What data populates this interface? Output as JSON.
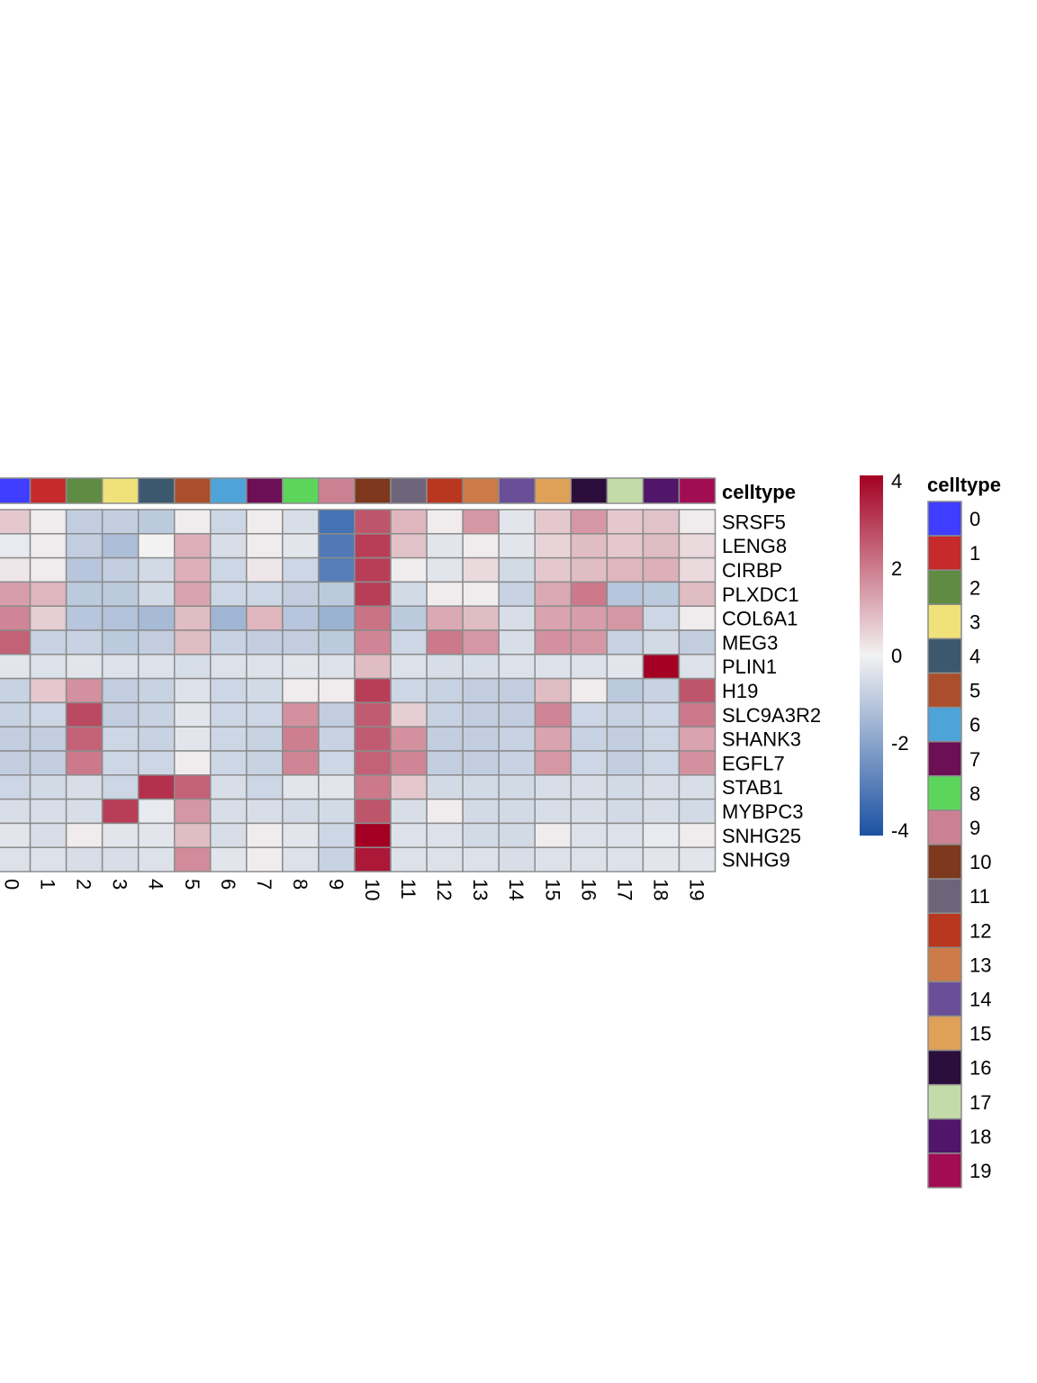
{
  "chart_data": {
    "type": "heatmap",
    "columns": [
      "0",
      "1",
      "2",
      "3",
      "4",
      "5",
      "6",
      "7",
      "8",
      "9",
      "10",
      "11",
      "12",
      "13",
      "14",
      "15",
      "16",
      "17",
      "18",
      "19"
    ],
    "rows": [
      "SRSF5",
      "LENG8",
      "CIRBP",
      "PLXDC1",
      "COL6A1",
      "MEG3",
      "PLIN1",
      "H19",
      "SLC9A3R2",
      "SHANK3",
      "EGFL7",
      "STAB1",
      "MYBPC3",
      "SNHG25",
      "SNHG9"
    ],
    "values": [
      [
        0.7,
        0.1,
        -0.9,
        -0.9,
        -1.0,
        0.1,
        -0.7,
        0.1,
        -0.5,
        -3.2,
        2.6,
        1.0,
        0.1,
        1.5,
        -0.3,
        0.7,
        1.5,
        0.7,
        0.8,
        0.1
      ],
      [
        -0.2,
        0.1,
        -0.9,
        -1.3,
        0.0,
        1.1,
        -0.5,
        0.1,
        -0.3,
        -3.0,
        3.0,
        0.8,
        -0.3,
        0.1,
        -0.3,
        0.5,
        0.9,
        0.7,
        0.9,
        0.4
      ],
      [
        0.2,
        0.1,
        -1.1,
        -0.9,
        -0.6,
        1.1,
        -0.7,
        0.2,
        -0.7,
        -2.9,
        3.0,
        0.1,
        -0.3,
        0.4,
        -0.6,
        0.7,
        0.9,
        1.0,
        1.1,
        0.4
      ],
      [
        1.4,
        1.0,
        -1.0,
        -1.0,
        -0.6,
        1.3,
        -0.7,
        -0.7,
        -0.9,
        -1.0,
        3.0,
        -0.6,
        0.1,
        0.1,
        -0.8,
        1.2,
        2.0,
        -1.1,
        -1.0,
        0.9
      ],
      [
        1.8,
        0.6,
        -1.1,
        -1.2,
        -1.4,
        0.9,
        -1.5,
        1.0,
        -1.1,
        -1.6,
        2.1,
        -1.0,
        1.2,
        0.9,
        -0.5,
        1.3,
        1.4,
        1.5,
        -0.7,
        0.1
      ],
      [
        2.4,
        -0.8,
        -0.8,
        -1.0,
        -0.9,
        0.9,
        -0.8,
        -0.9,
        -0.9,
        -1.0,
        1.8,
        -0.7,
        2.0,
        1.5,
        -0.5,
        1.6,
        1.5,
        -0.8,
        -0.6,
        -0.9
      ],
      [
        -0.3,
        -0.4,
        -0.3,
        -0.4,
        -0.4,
        -0.5,
        -0.4,
        -0.4,
        -0.3,
        -0.4,
        0.9,
        -0.4,
        -0.5,
        -0.5,
        -0.4,
        -0.4,
        -0.4,
        -0.3,
        4.0,
        -0.4
      ],
      [
        -0.8,
        0.7,
        1.6,
        -0.9,
        -0.8,
        -0.4,
        -0.7,
        -0.6,
        0.1,
        0.1,
        3.0,
        -0.7,
        -0.8,
        -0.9,
        -0.9,
        0.9,
        0.1,
        -1.0,
        -0.8,
        2.6
      ],
      [
        -0.8,
        -0.7,
        2.8,
        -0.9,
        -0.8,
        -0.3,
        -0.7,
        -0.7,
        1.6,
        -0.9,
        2.5,
        0.6,
        -0.8,
        -0.9,
        -0.9,
        1.8,
        -0.7,
        -0.8,
        -0.7,
        2.0
      ],
      [
        -0.9,
        -0.9,
        2.4,
        -0.7,
        -0.8,
        -0.3,
        -0.7,
        -0.8,
        1.9,
        -0.8,
        2.5,
        1.6,
        -0.9,
        -0.9,
        -0.8,
        1.3,
        -0.8,
        -0.9,
        -0.7,
        1.3
      ],
      [
        -0.9,
        -0.9,
        2.0,
        -0.7,
        -0.7,
        0.1,
        -0.7,
        -0.8,
        1.8,
        -0.7,
        2.4,
        1.8,
        -0.9,
        -0.9,
        -0.8,
        1.5,
        -0.7,
        -0.9,
        -0.7,
        1.6
      ],
      [
        -0.7,
        -0.6,
        -0.5,
        -0.7,
        3.2,
        2.4,
        -0.5,
        -0.7,
        -0.3,
        -0.3,
        2.0,
        0.7,
        -0.6,
        -0.6,
        -0.6,
        -0.5,
        -0.5,
        -0.6,
        -0.5,
        -0.5
      ],
      [
        -0.5,
        -0.5,
        -0.5,
        3.0,
        -0.2,
        1.5,
        -0.5,
        -0.5,
        -0.6,
        -0.6,
        2.6,
        -0.5,
        0.1,
        -0.6,
        -0.6,
        -0.5,
        -0.5,
        -0.6,
        -0.5,
        -0.6
      ],
      [
        -0.3,
        -0.5,
        0.1,
        -0.3,
        -0.3,
        0.9,
        -0.5,
        0.1,
        -0.3,
        -0.7,
        4.0,
        -0.4,
        -0.4,
        -0.6,
        -0.6,
        0.1,
        -0.4,
        -0.4,
        -0.2,
        0.1
      ],
      [
        -0.4,
        -0.4,
        -0.5,
        -0.5,
        -0.4,
        1.7,
        -0.3,
        0.1,
        -0.4,
        -0.8,
        3.6,
        -0.4,
        -0.4,
        -0.4,
        -0.5,
        -0.4,
        -0.4,
        -0.4,
        -0.3,
        -0.3
      ]
    ],
    "annotation_label": "celltype",
    "annotation_colors": [
      "#3f3dff",
      "#c62a2b",
      "#5f8b43",
      "#f0e279",
      "#3b586f",
      "#aa4e2c",
      "#4ea3d9",
      "#6c0f55",
      "#5bd65a",
      "#cc8192",
      "#7d381d",
      "#6e647a",
      "#b9371f",
      "#cb7a48",
      "#6a4e98",
      "#dfa158",
      "#2b0e3c",
      "#c3dba8",
      "#4f1669",
      "#a20c53"
    ],
    "color_scale": {
      "min": -4,
      "max": 4,
      "ticks": [
        "4",
        "2",
        "0",
        "-2",
        "-4"
      ],
      "colors": [
        "#1b51a2",
        "#f2f2f2",
        "#a40023"
      ]
    },
    "legend": {
      "title": "celltype",
      "labels": [
        "0",
        "1",
        "2",
        "3",
        "4",
        "5",
        "6",
        "7",
        "8",
        "9",
        "10",
        "11",
        "12",
        "13",
        "14",
        "15",
        "16",
        "17",
        "18",
        "19"
      ]
    }
  }
}
